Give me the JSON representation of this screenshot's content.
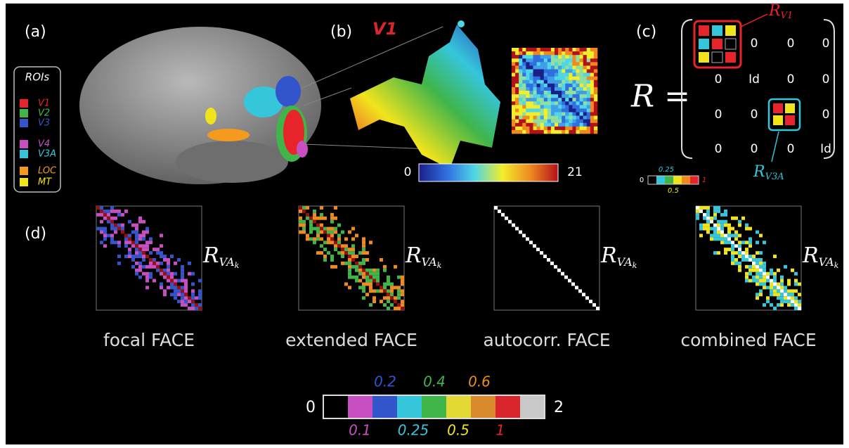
{
  "panel_a": {
    "label": "(a)",
    "legend_title": "ROIs",
    "legend_items": [
      {
        "text": "V1",
        "color": "#e8242b"
      },
      {
        "text": "V2",
        "color": "#3fb54a"
      },
      {
        "text": "V3",
        "color": "#3355cc"
      },
      {
        "text": "V4",
        "color": "#c74fc2"
      },
      {
        "text": "V3A",
        "color": "#35c6dc"
      },
      {
        "text": "LOC",
        "color": "#f39a1f"
      },
      {
        "text": "MT",
        "color": "#f2e41c"
      }
    ]
  },
  "panel_b": {
    "label": "(b)",
    "region": "V1",
    "colorbar_min": "0",
    "colorbar_max": "21"
  },
  "panel_c": {
    "label": "(c)",
    "lhs": "R =",
    "matrix_rows": [
      [
        "0",
        "0",
        "0"
      ],
      [
        "0",
        "Id",
        "0",
        "0"
      ],
      [
        "0",
        "0",
        "0"
      ],
      [
        "0",
        "0",
        "0",
        "Id"
      ]
    ],
    "block_1": {
      "base": "R",
      "sub": "V1"
    },
    "block_2": {
      "base": "R",
      "sub": "V3A"
    },
    "colorbar_labels": [
      "0",
      "0.25",
      "0.5",
      "1"
    ]
  },
  "panel_d": {
    "label": "(d)",
    "matrix_symbol": {
      "base": "R",
      "sub": "VA",
      "subsub": "k"
    },
    "panels": [
      "focal FACE",
      "extended FACE",
      "autocorr. FACE",
      "combined FACE"
    ],
    "colorbar_min": "0",
    "colorbar_max": "2",
    "colorbar_upper_labels": [
      "0.2",
      "0.4",
      "0.6"
    ],
    "colorbar_lower_labels": [
      "0.1",
      "0.25",
      "0.5",
      "1"
    ]
  }
}
